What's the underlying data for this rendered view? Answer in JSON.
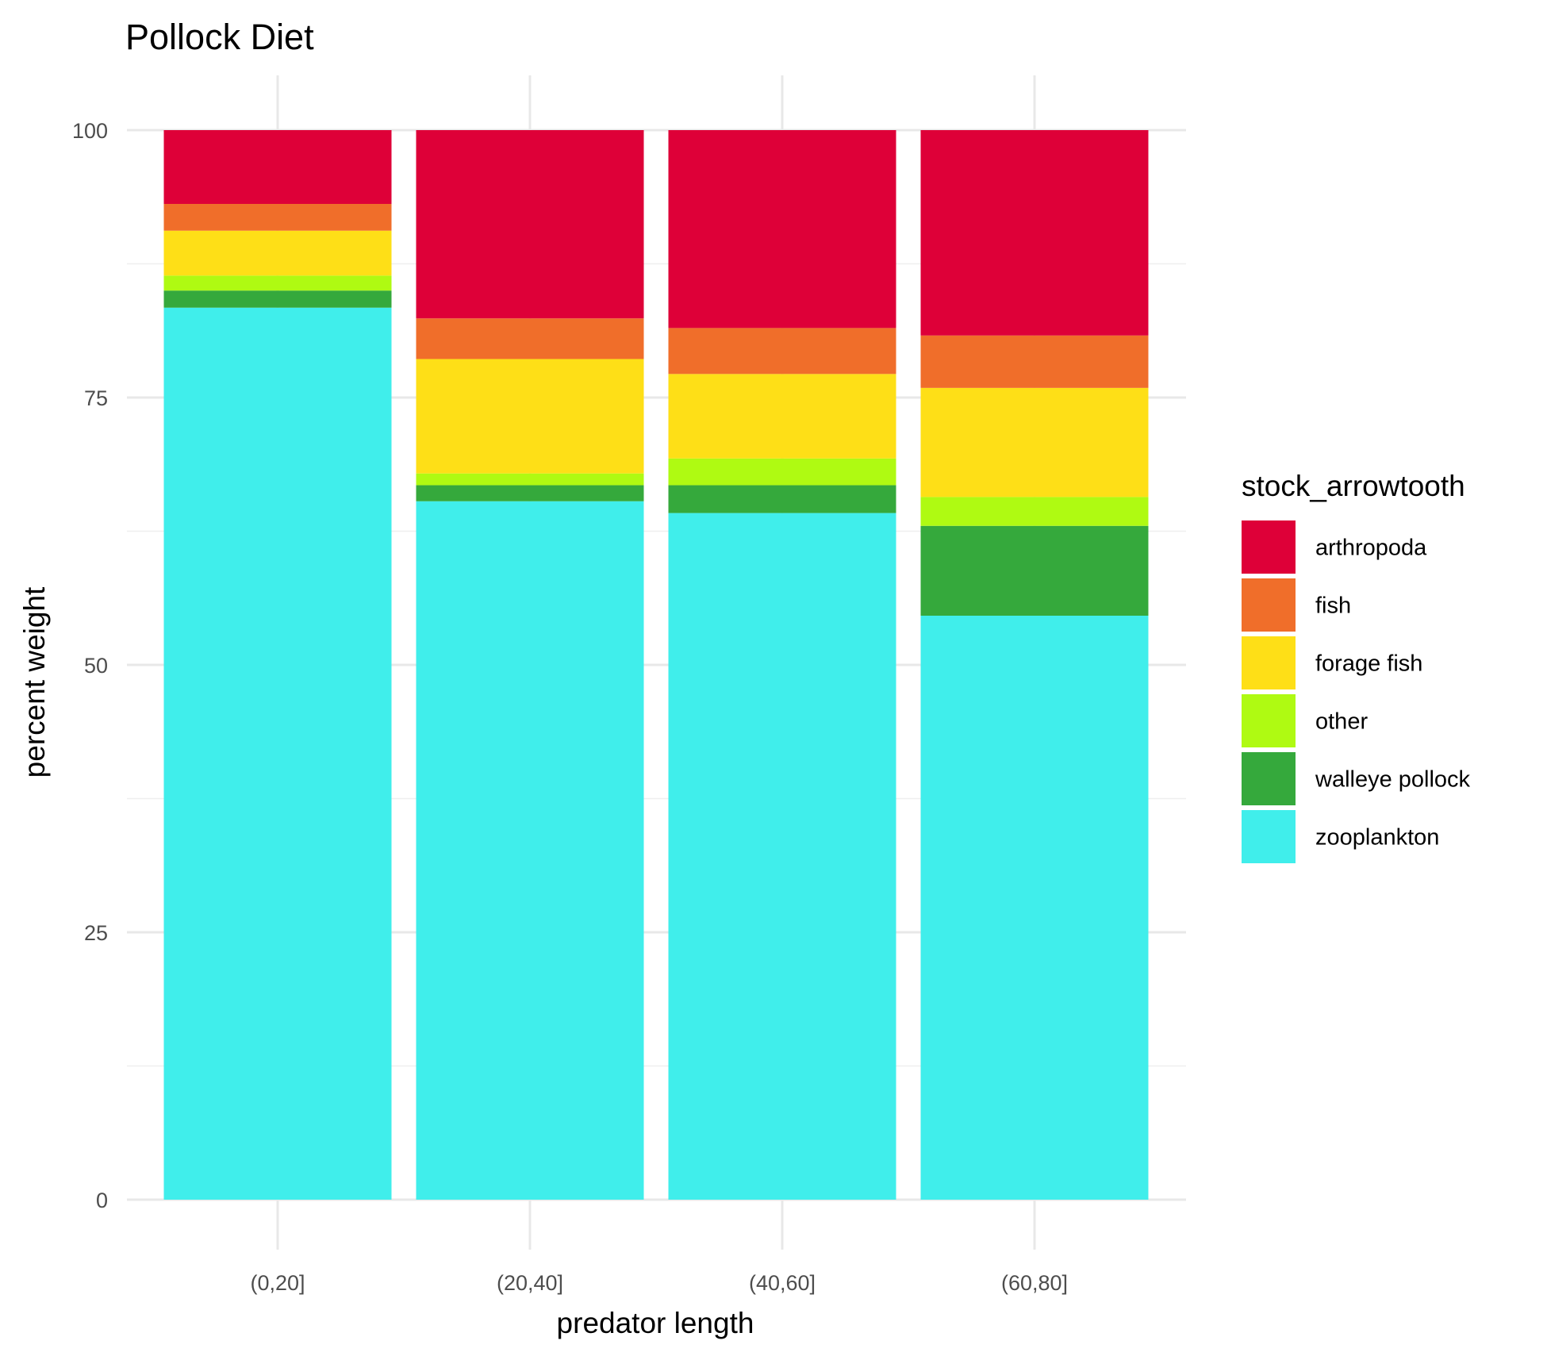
{
  "chart_data": {
    "type": "bar",
    "stacked": true,
    "title": "Pollock Diet",
    "xlabel": "predator length",
    "ylabel": "percent weight",
    "ylim": [
      0,
      100
    ],
    "yticks": [
      0,
      25,
      50,
      75,
      100
    ],
    "grid": true,
    "legend_title": "stock_arrowtooth",
    "legend_position": "right",
    "categories": [
      "(0,20]",
      "(20,40]",
      "(40,60]",
      "(60,80]"
    ],
    "series": [
      {
        "name": "zooplankton",
        "color": "#40EEEB",
        "values": [
          83.4,
          65.3,
          64.2,
          54.6
        ]
      },
      {
        "name": "walleye pollock",
        "color": "#35A93C",
        "values": [
          1.6,
          1.5,
          2.6,
          8.4
        ]
      },
      {
        "name": "other",
        "color": "#AFFA12",
        "values": [
          1.4,
          1.1,
          2.5,
          2.7
        ]
      },
      {
        "name": "forage fish",
        "color": "#FEDF17",
        "values": [
          4.2,
          10.7,
          7.9,
          10.2
        ]
      },
      {
        "name": "fish",
        "color": "#F06E2A",
        "values": [
          2.5,
          3.8,
          4.3,
          4.9
        ]
      },
      {
        "name": "arthropoda",
        "color": "#DE0038",
        "values": [
          6.9,
          17.6,
          18.5,
          19.2
        ]
      }
    ],
    "legend_order": [
      "arthropoda",
      "fish",
      "forage fish",
      "other",
      "walleye pollock",
      "zooplankton"
    ]
  }
}
